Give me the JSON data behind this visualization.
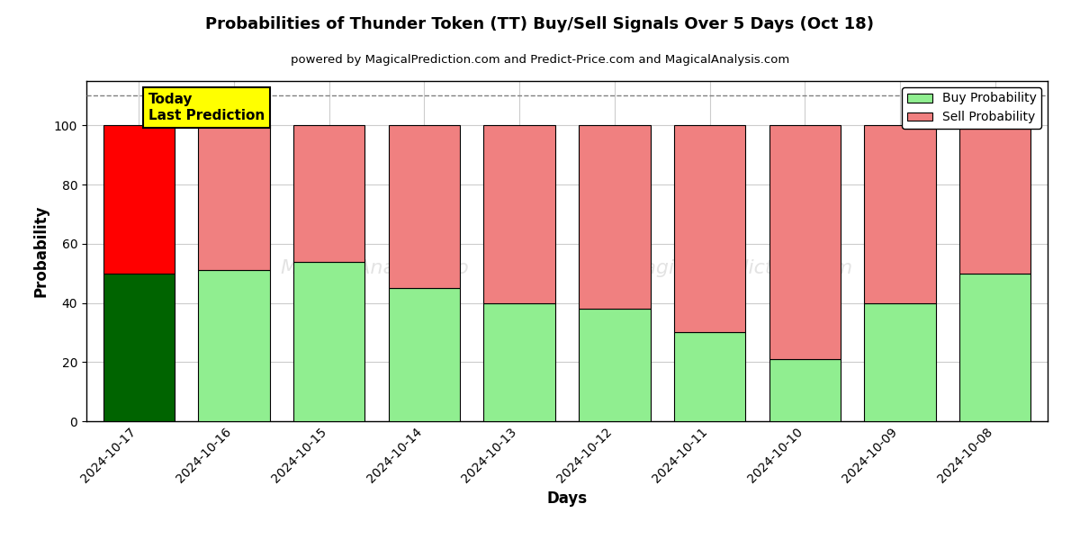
{
  "title": "Probabilities of Thunder Token (TT) Buy/Sell Signals Over 5 Days (Oct 18)",
  "subtitle": "powered by MagicalPrediction.com and Predict-Price.com and MagicalAnalysis.com",
  "xlabel": "Days",
  "ylabel": "Probability",
  "categories": [
    "2024-10-17",
    "2024-10-16",
    "2024-10-15",
    "2024-10-14",
    "2024-10-13",
    "2024-10-12",
    "2024-10-11",
    "2024-10-10",
    "2024-10-09",
    "2024-10-08"
  ],
  "buy_values": [
    50,
    51,
    54,
    45,
    40,
    38,
    30,
    21,
    40,
    50
  ],
  "sell_values": [
    50,
    49,
    46,
    55,
    60,
    62,
    70,
    79,
    60,
    50
  ],
  "today_buy_color": "#006400",
  "today_sell_color": "#ff0000",
  "buy_color": "#90EE90",
  "sell_color": "#F08080",
  "today_index": 0,
  "today_label": "Today\nLast Prediction",
  "today_label_bg": "#ffff00",
  "ylim": [
    0,
    115
  ],
  "yticks": [
    0,
    20,
    40,
    60,
    80,
    100
  ],
  "dashed_line_y": 110,
  "legend_buy_label": "Buy Probability",
  "legend_sell_label": "Sell Probability",
  "bar_edge_color": "#000000",
  "bar_linewidth": 0.8,
  "grid_color": "#cccccc",
  "background_color": "#ffffff",
  "figsize": [
    12,
    6
  ],
  "dpi": 100
}
